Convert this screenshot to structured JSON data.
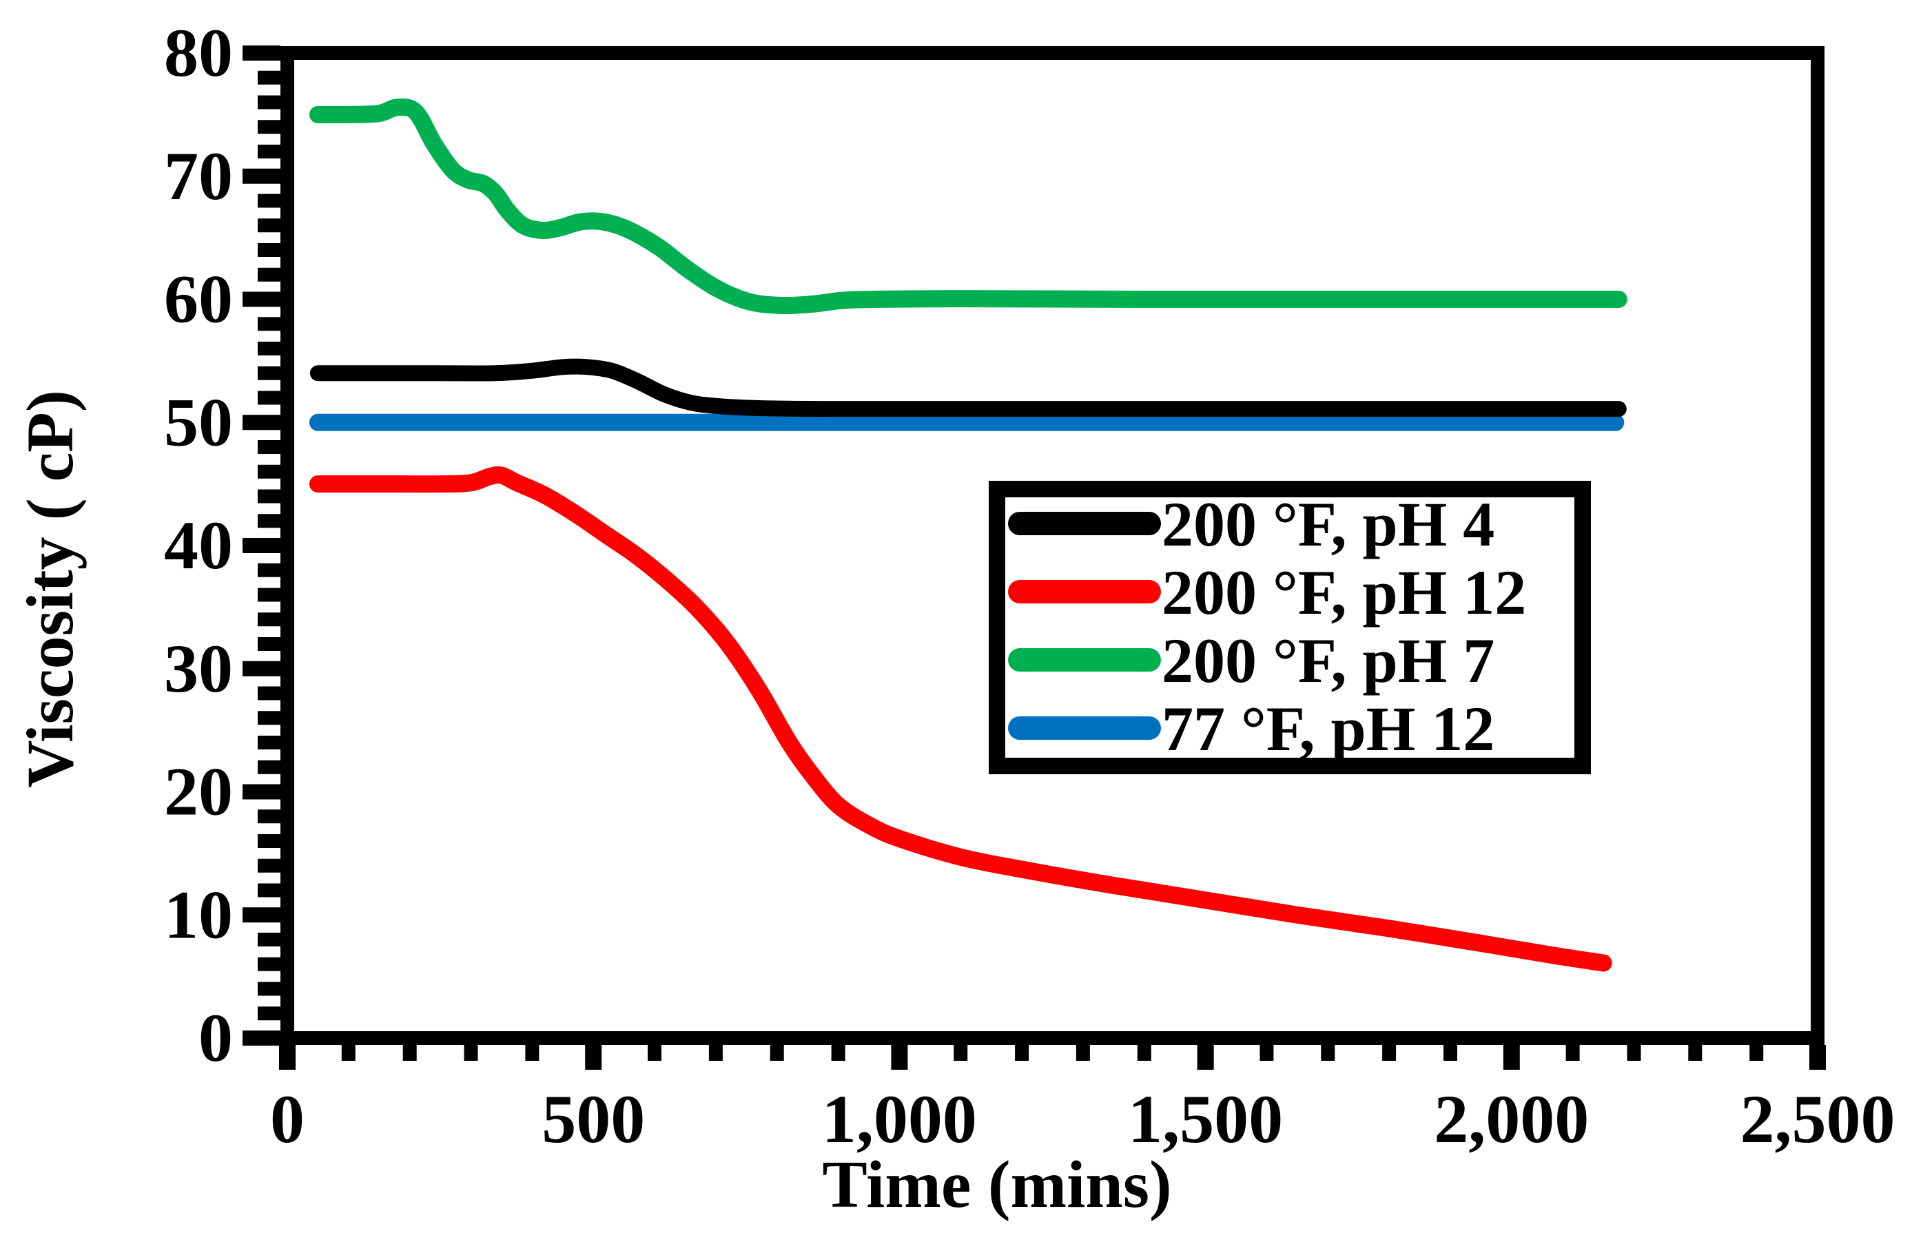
{
  "figure": {
    "background_color": "#FFFFFF",
    "axis_color": "#000000"
  },
  "chart_data": {
    "type": "line",
    "title": "",
    "xlabel": "Time (mins)",
    "ylabel": "Viscosity ( cP)",
    "xlim": [
      0,
      2500
    ],
    "ylim": [
      0,
      80
    ],
    "grid": false,
    "legend_position": "inside-right-middle",
    "x_tick_values": [
      0,
      500,
      1000,
      1500,
      2000,
      2500
    ],
    "x_tick_labels": [
      "0",
      "500",
      "1,000",
      "1,500",
      "2,000",
      "2,500"
    ],
    "x_minor_step": 100,
    "y_tick_values": [
      0,
      10,
      20,
      30,
      40,
      50,
      60,
      70,
      80
    ],
    "y_tick_labels": [
      "0",
      "10",
      "20",
      "30",
      "40",
      "50",
      "60",
      "70",
      "80"
    ],
    "y_minor_step": 2,
    "series": [
      {
        "name": "200 °F, pH 4",
        "color": "#000000",
        "points": [
          [
            50,
            54
          ],
          [
            150,
            54
          ],
          [
            250,
            54
          ],
          [
            340,
            54
          ],
          [
            400,
            54.2
          ],
          [
            450,
            54.5
          ],
          [
            490,
            54.5
          ],
          [
            530,
            54.2
          ],
          [
            570,
            53.4
          ],
          [
            615,
            52.3
          ],
          [
            660,
            51.6
          ],
          [
            710,
            51.3
          ],
          [
            780,
            51.15
          ],
          [
            900,
            51.1
          ],
          [
            1200,
            51.1
          ],
          [
            1600,
            51.1
          ],
          [
            2175,
            51.1
          ]
        ]
      },
      {
        "name": "200 °F, pH 12",
        "color": "#FF0000",
        "points": [
          [
            50,
            45
          ],
          [
            150,
            45
          ],
          [
            250,
            45
          ],
          [
            300,
            45.1
          ],
          [
            330,
            45.6
          ],
          [
            350,
            45.7
          ],
          [
            375,
            45.1
          ],
          [
            420,
            44.1
          ],
          [
            470,
            42.6
          ],
          [
            520,
            40.9
          ],
          [
            570,
            39.2
          ],
          [
            620,
            37.2
          ],
          [
            670,
            34.9
          ],
          [
            720,
            32
          ],
          [
            770,
            28.3
          ],
          [
            820,
            24
          ],
          [
            860,
            21.2
          ],
          [
            900,
            18.9
          ],
          [
            950,
            17.3
          ],
          [
            1000,
            16.2
          ],
          [
            1100,
            14.7
          ],
          [
            1200,
            13.7
          ],
          [
            1350,
            12.4
          ],
          [
            1500,
            11.2
          ],
          [
            1650,
            10
          ],
          [
            1800,
            8.9
          ],
          [
            1950,
            7.7
          ],
          [
            2070,
            6.7
          ],
          [
            2150,
            6.1
          ]
        ]
      },
      {
        "name": "200 °F, pH 7",
        "color": "#00B050",
        "points": [
          [
            50,
            75
          ],
          [
            100,
            75
          ],
          [
            150,
            75.1
          ],
          [
            180,
            75.6
          ],
          [
            210,
            75.2
          ],
          [
            240,
            72.6
          ],
          [
            270,
            70.5
          ],
          [
            295,
            69.7
          ],
          [
            320,
            69.4
          ],
          [
            340,
            68.6
          ],
          [
            360,
            67.2
          ],
          [
            385,
            66
          ],
          [
            415,
            65.6
          ],
          [
            445,
            65.8
          ],
          [
            480,
            66.3
          ],
          [
            515,
            66.3
          ],
          [
            555,
            65.7
          ],
          [
            605,
            64.3
          ],
          [
            655,
            62.4
          ],
          [
            705,
            60.8
          ],
          [
            755,
            59.8
          ],
          [
            805,
            59.5
          ],
          [
            855,
            59.6
          ],
          [
            905,
            59.9
          ],
          [
            960,
            60
          ],
          [
            1100,
            60.05
          ],
          [
            1400,
            60
          ],
          [
            1800,
            60
          ],
          [
            2175,
            60
          ]
        ]
      },
      {
        "name": "77 °F, pH 12",
        "color": "#0070C0",
        "points": [
          [
            50,
            50
          ],
          [
            400,
            50
          ],
          [
            800,
            50
          ],
          [
            1200,
            50
          ],
          [
            1600,
            50
          ],
          [
            2000,
            50
          ],
          [
            2170,
            50
          ]
        ]
      }
    ]
  }
}
